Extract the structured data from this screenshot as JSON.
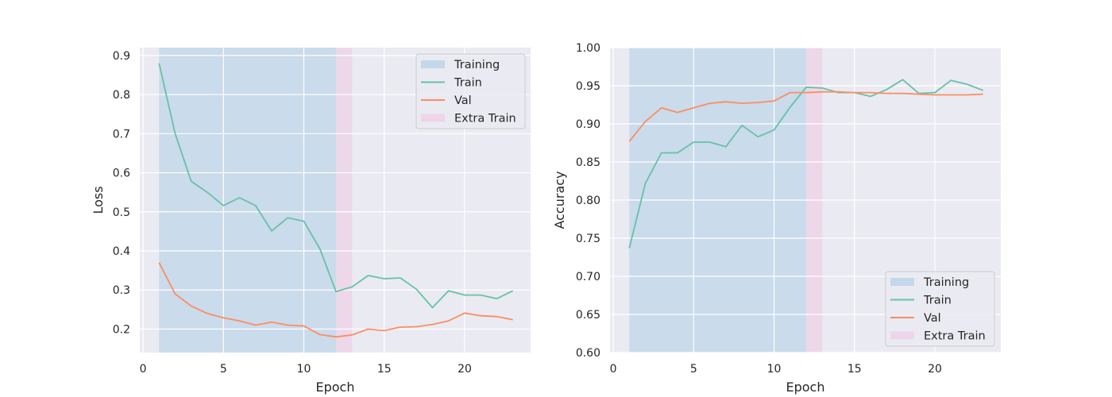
{
  "chart_data": [
    {
      "type": "line",
      "xlabel": "Epoch",
      "ylabel": "Loss",
      "xlim": [
        -0.2,
        24.1
      ],
      "ylim": [
        0.14,
        0.92
      ],
      "xticks": [
        0,
        5,
        10,
        15,
        20
      ],
      "yticks": [
        0.2,
        0.3,
        0.4,
        0.5,
        0.6,
        0.7,
        0.8,
        0.9
      ],
      "grid": true,
      "legend_position": "top-right",
      "spans": [
        {
          "name": "Training",
          "start": 1,
          "end": 12,
          "color": "#6baed6"
        },
        {
          "name": "Extra Train",
          "start": 12,
          "end": 13,
          "color": "#f4b6dc"
        }
      ],
      "x": [
        1,
        2,
        3,
        4,
        5,
        6,
        7,
        8,
        9,
        10,
        11,
        12,
        13,
        14,
        15,
        16,
        17,
        18,
        19,
        20,
        21,
        22,
        23
      ],
      "series": [
        {
          "name": "Train",
          "color": "#66c2a5",
          "values": [
            0.88,
            0.7,
            0.578,
            0.55,
            0.516,
            0.536,
            0.516,
            0.451,
            0.485,
            0.476,
            0.405,
            0.296,
            0.308,
            0.337,
            0.329,
            0.331,
            0.302,
            0.255,
            0.298,
            0.287,
            0.287,
            0.278,
            0.298
          ]
        },
        {
          "name": "Val",
          "color": "#fc8d62",
          "values": [
            0.37,
            0.29,
            0.259,
            0.24,
            0.229,
            0.221,
            0.21,
            0.218,
            0.21,
            0.208,
            0.186,
            0.18,
            0.185,
            0.2,
            0.196,
            0.205,
            0.206,
            0.212,
            0.221,
            0.241,
            0.234,
            0.232,
            0.224
          ]
        }
      ],
      "legend": [
        "Training",
        "Train",
        "Val",
        "Extra Train"
      ]
    },
    {
      "type": "line",
      "xlabel": "Epoch",
      "ylabel": "Accuracy",
      "xlim": [
        -0.2,
        24.1
      ],
      "ylim": [
        0.6,
        1.0
      ],
      "xticks": [
        0,
        5,
        10,
        15,
        20
      ],
      "yticks": [
        0.6,
        0.65,
        0.7,
        0.75,
        0.8,
        0.85,
        0.9,
        0.95,
        1.0
      ],
      "grid": true,
      "legend_position": "bottom-right",
      "spans": [
        {
          "name": "Training",
          "start": 1,
          "end": 12,
          "color": "#6baed6"
        },
        {
          "name": "Extra Train",
          "start": 12,
          "end": 13,
          "color": "#f4b6dc"
        }
      ],
      "x": [
        1,
        2,
        3,
        4,
        5,
        6,
        7,
        8,
        9,
        10,
        11,
        12,
        13,
        14,
        15,
        16,
        17,
        18,
        19,
        20,
        21,
        22,
        23
      ],
      "series": [
        {
          "name": "Train",
          "color": "#66c2a5",
          "values": [
            0.737,
            0.822,
            0.862,
            0.862,
            0.876,
            0.876,
            0.87,
            0.898,
            0.883,
            0.892,
            0.922,
            0.948,
            0.947,
            0.941,
            0.941,
            0.936,
            0.945,
            0.958,
            0.94,
            0.941,
            0.957,
            0.952,
            0.944
          ]
        },
        {
          "name": "Val",
          "color": "#fc8d62",
          "values": [
            0.877,
            0.903,
            0.921,
            0.915,
            0.921,
            0.927,
            0.929,
            0.927,
            0.928,
            0.93,
            0.941,
            0.941,
            0.942,
            0.942,
            0.941,
            0.941,
            0.94,
            0.94,
            0.939,
            0.938,
            0.938,
            0.938,
            0.939
          ]
        }
      ],
      "legend": [
        "Training",
        "Train",
        "Val",
        "Extra Train"
      ]
    }
  ]
}
